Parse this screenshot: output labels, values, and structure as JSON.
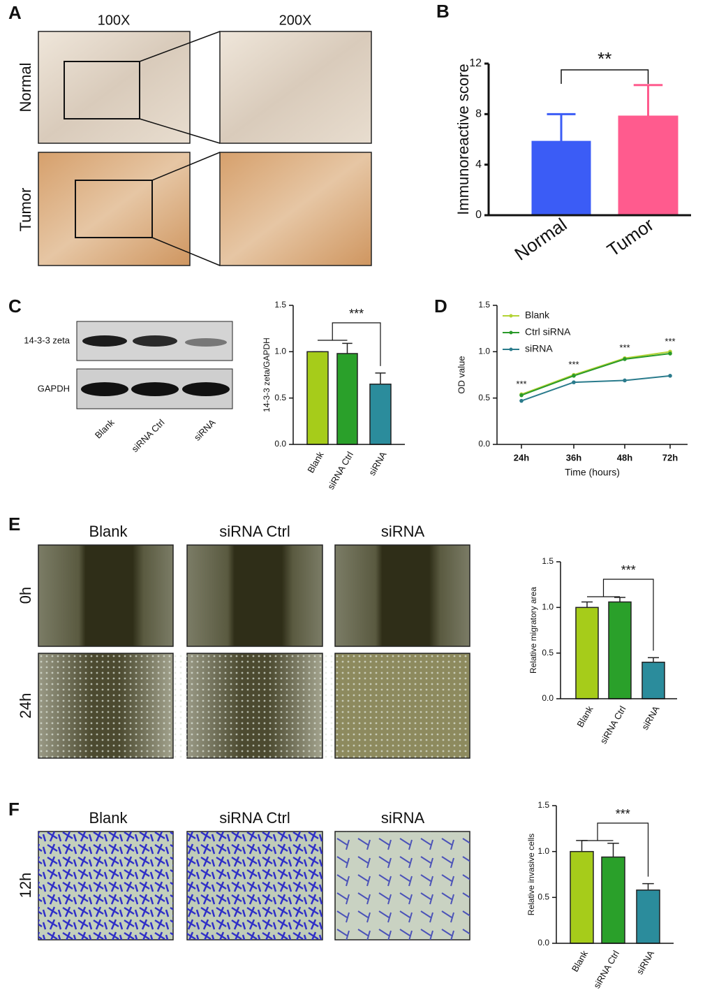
{
  "panel_labels": [
    "A",
    "B",
    "C",
    "D",
    "E",
    "F"
  ],
  "ihc": {
    "columns": [
      "100X",
      "200X"
    ],
    "rows": [
      "Normal",
      "Tumor"
    ]
  },
  "western": {
    "bands": [
      "14-3-3 zeta",
      "GAPDH"
    ],
    "lanes": [
      "Blank",
      "siRNA Ctrl",
      "siRNA"
    ]
  },
  "wound": {
    "columns": [
      "Blank",
      "siRNA Ctrl",
      "siRNA"
    ],
    "rows": [
      "0h",
      "24h"
    ]
  },
  "transwell": {
    "columns": [
      "Blank",
      "siRNA Ctrl",
      "siRNA"
    ],
    "rows": [
      "12h"
    ]
  },
  "chart_data": [
    {
      "type": "bar",
      "ylabel": "Immunoreactive score",
      "categories": [
        "Normal",
        "Tumor"
      ],
      "values": [
        5.8,
        7.8
      ],
      "errors": [
        2.2,
        2.5
      ],
      "colors": [
        "#3b5cf6",
        "#ff5b8e"
      ],
      "ylim": [
        0,
        12
      ],
      "yticks": [
        0,
        4,
        8,
        12
      ],
      "annotation": "**"
    },
    {
      "type": "bar",
      "ylabel": "14-3-3 zeta/GAPDH",
      "categories": [
        "Blank",
        "siRNA Ctrl",
        "siRNA"
      ],
      "values": [
        1.0,
        0.98,
        0.65
      ],
      "errors": [
        0,
        0.11,
        0.12
      ],
      "colors": [
        "#a6cc1a",
        "#2aa02a",
        "#2b8c9c"
      ],
      "ylim": [
        0,
        1.5
      ],
      "yticks": [
        {
          "value": 0,
          "label": "0.0"
        },
        0.5,
        {
          "value": 1,
          "label": "1.0"
        },
        1.5
      ],
      "annotation": "***"
    },
    {
      "type": "line",
      "ylabel": "OD value",
      "xlabel": "Time (hours)",
      "x": [
        "24h",
        "36h",
        "48h",
        "72h"
      ],
      "series": [
        {
          "name": "Blank",
          "color": "#b3d334",
          "values": [
            0.54,
            0.75,
            0.93,
            1.0
          ]
        },
        {
          "name": "Ctrl siRNA",
          "color": "#2a9a2a",
          "values": [
            0.53,
            0.74,
            0.92,
            0.98
          ]
        },
        {
          "name": "siRNA",
          "color": "#2a7b8c",
          "values": [
            0.47,
            0.67,
            0.69,
            0.74
          ]
        }
      ],
      "ylim": [
        0,
        1.5
      ],
      "yticks": [
        {
          "value": 0,
          "label": "0.0"
        },
        0.5,
        {
          "value": 1,
          "label": "1.0"
        },
        1.5
      ],
      "annotations": [
        "***",
        "***",
        "***",
        "***"
      ]
    },
    {
      "type": "bar",
      "ylabel": "Relative migratory area",
      "categories": [
        "Blank",
        "siRNA Ctrl",
        "siRNA"
      ],
      "values": [
        1.0,
        1.06,
        0.4
      ],
      "errors": [
        0.06,
        0.05,
        0.05
      ],
      "colors": [
        "#a6cc1a",
        "#2aa02a",
        "#2b8c9c"
      ],
      "ylim": [
        0,
        1.5
      ],
      "yticks": [
        {
          "value": 0,
          "label": "0.0"
        },
        0.5,
        {
          "value": 1,
          "label": "1.0"
        },
        1.5
      ],
      "annotation": "***"
    },
    {
      "type": "bar",
      "ylabel": "Relative invasive cells",
      "categories": [
        "Blank",
        "siRNA Ctrl",
        "siRNA"
      ],
      "values": [
        1.0,
        0.94,
        0.58
      ],
      "errors": [
        0.12,
        0.15,
        0.07
      ],
      "colors": [
        "#a6cc1a",
        "#2aa02a",
        "#2b8c9c"
      ],
      "ylim": [
        0,
        1.5
      ],
      "yticks": [
        {
          "value": 0,
          "label": "0.0"
        },
        0.5,
        {
          "value": 1,
          "label": "1.0"
        },
        1.5
      ],
      "annotation": "***"
    }
  ]
}
